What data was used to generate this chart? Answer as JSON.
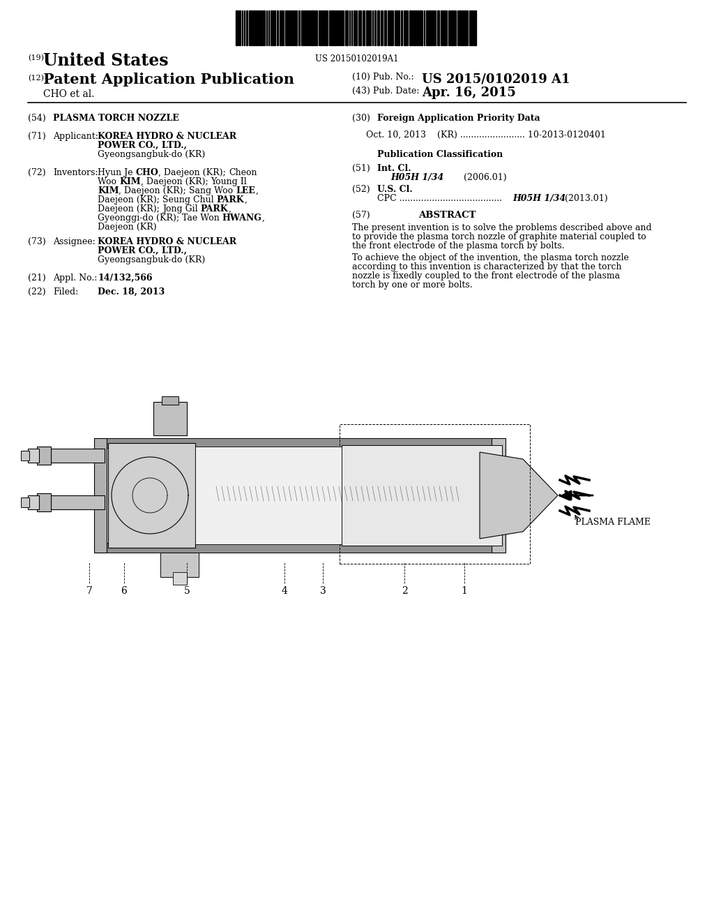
{
  "background_color": "#ffffff",
  "barcode_text": "US 20150102019A1",
  "header_line1_num": "(19)",
  "header_line1_text": "United States",
  "header_line2_num": "(12)",
  "header_line2_text": "Patent Application Publication",
  "pub_no_label": "(10) Pub. No.:",
  "pub_no_value": "US 2015/0102019 A1",
  "pub_date_label": "(43) Pub. Date:",
  "pub_date_value": "Apr. 16, 2015",
  "author_line": "CHO et al.",
  "field54_num": "(54)",
  "field54_label": "PLASMA TORCH NOZZLE",
  "field71_num": "(71)",
  "field71_label": "Applicant:",
  "field71_value1": "KOREA HYDRO & NUCLEAR",
  "field71_value2": "POWER CO., LTD.,",
  "field71_value3": "Gyeongsangbuk-do (KR)",
  "field72_num": "(72)",
  "field72_label": "Inventors:",
  "field73_num": "(73)",
  "field73_label": "Assignee:",
  "field73_value1": "KOREA HYDRO & NUCLEAR",
  "field73_value2": "POWER CO., LTD.,",
  "field73_value3": "Gyeongsangbuk-do (KR)",
  "field21_num": "(21)",
  "field21_label": "Appl. No.:",
  "field21_value": "14/132,566",
  "field22_num": "(22)",
  "field22_label": "Filed:",
  "field22_value": "Dec. 18, 2013",
  "field30_num": "(30)",
  "field30_label": "Foreign Application Priority Data",
  "field30_value": "Oct. 10, 2013    (KR) ........................ 10-2013-0120401",
  "pub_class_label": "Publication Classification",
  "field51_num": "(51)",
  "field51_label": "Int. Cl.",
  "field51_class": "H05H 1/34",
  "field51_year": "(2006.01)",
  "field52_num": "(52)",
  "field52_label": "U.S. Cl.",
  "field57_num": "(57)",
  "field57_label": "ABSTRACT",
  "abstract_text1": "The present invention is to solve the problems described above and to provide the plasma torch nozzle of graphite material coupled to the front electrode of the plasma torch by bolts.",
  "abstract_text2": "To achieve the object of the invention, the plasma torch nozzle according to this invention is characterized by that the torch nozzle is fixedly coupled to the front electrode of the plasma torch by one or more bolts.",
  "diagram_labels": [
    [
      "7",
      128,
      840
    ],
    [
      "6",
      178,
      840
    ],
    [
      "5",
      268,
      840
    ],
    [
      "4",
      408,
      840
    ],
    [
      "3",
      463,
      840
    ],
    [
      "2",
      580,
      840
    ],
    [
      "1",
      666,
      840
    ]
  ],
  "diagram_flame_label": "PLASMA FLAME"
}
